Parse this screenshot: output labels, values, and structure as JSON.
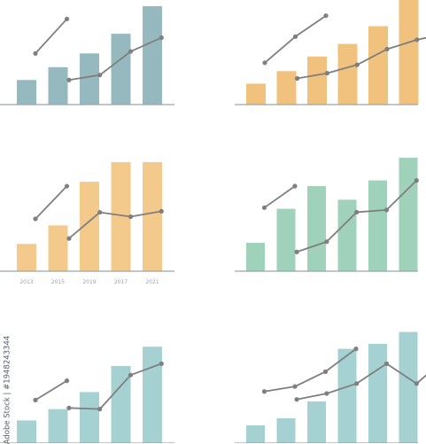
{
  "stock_id": "Adobe Stock | #1948243344",
  "chart_data": [
    {
      "type": "bar",
      "title": "",
      "categories": [
        "",
        "",
        "",
        "",
        ""
      ],
      "values": [
        25,
        38,
        52,
        72,
        100
      ],
      "bar_color": "#96b8bf",
      "baseline_color": "#9aa4ab",
      "lines": [
        {
          "values": [
            52,
            87
          ],
          "color": "#7f7f7f"
        },
        {
          "values": [
            25,
            30,
            54,
            68
          ],
          "color": "#7f7f7f"
        }
      ]
    },
    {
      "type": "bar",
      "title": "",
      "categories": [
        "",
        "",
        "",
        "",
        "",
        ""
      ],
      "values": [
        20,
        32,
        46,
        58,
        75,
        100
      ],
      "bar_color": "#f1c27d",
      "baseline_color": "#9aa4ab",
      "lines": [
        {
          "values": [
            40,
            65,
            85
          ],
          "color": "#7f7f7f"
        },
        {
          "values": [
            25,
            30,
            38,
            53,
            62,
            68
          ],
          "color": "#7f7f7f"
        }
      ]
    },
    {
      "type": "bar",
      "title": "",
      "categories": [
        "2013",
        "2015",
        "2019",
        "2017",
        "2021"
      ],
      "values": [
        25,
        42,
        82,
        100,
        100
      ],
      "bar_color": "#f4c98c",
      "baseline_color": "#9aa4ab",
      "lines": [
        {
          "values": [
            48,
            78
          ],
          "color": "#7f7f7f"
        },
        {
          "values": [
            30,
            54,
            50,
            55
          ],
          "color": "#7f7f7f"
        }
      ]
    },
    {
      "type": "bar",
      "title": "",
      "categories": [
        "",
        "",
        "",
        "",
        "",
        ""
      ],
      "values": [
        25,
        55,
        75,
        63,
        80,
        100
      ],
      "bar_color": "#9fd1bb",
      "baseline_color": "#9aa4ab",
      "lines": [
        {
          "values": [
            56,
            75
          ],
          "color": "#7f7f7f"
        },
        {
          "values": [
            17,
            26,
            52,
            54,
            80
          ],
          "color": "#7f7f7f"
        }
      ]
    },
    {
      "type": "bar",
      "title": "",
      "categories": [
        "",
        "",
        "",
        "",
        ""
      ],
      "values": [
        20,
        30,
        45,
        68,
        85
      ],
      "bar_color": "#a6d1d2",
      "baseline_color": "#9aa4ab",
      "lines": [
        {
          "values": [
            38,
            55
          ],
          "color": "#7f7f7f"
        },
        {
          "values": [
            31,
            30,
            60,
            70
          ],
          "color": "#7f7f7f"
        }
      ]
    },
    {
      "type": "bar",
      "title": "",
      "categories": [
        "",
        "",
        "",
        "",
        "",
        ""
      ],
      "values": [
        18,
        25,
        42,
        95,
        100,
        112
      ],
      "bar_color": "#a6d1d2",
      "baseline_color": "#9aa4ab",
      "lines": [
        {
          "values": [
            52,
            57,
            72,
            95
          ],
          "color": "#7f7f7f"
        },
        {
          "values": [
            44,
            50,
            60,
            80,
            60,
            86
          ],
          "color": "#7f7f7f"
        }
      ]
    }
  ]
}
